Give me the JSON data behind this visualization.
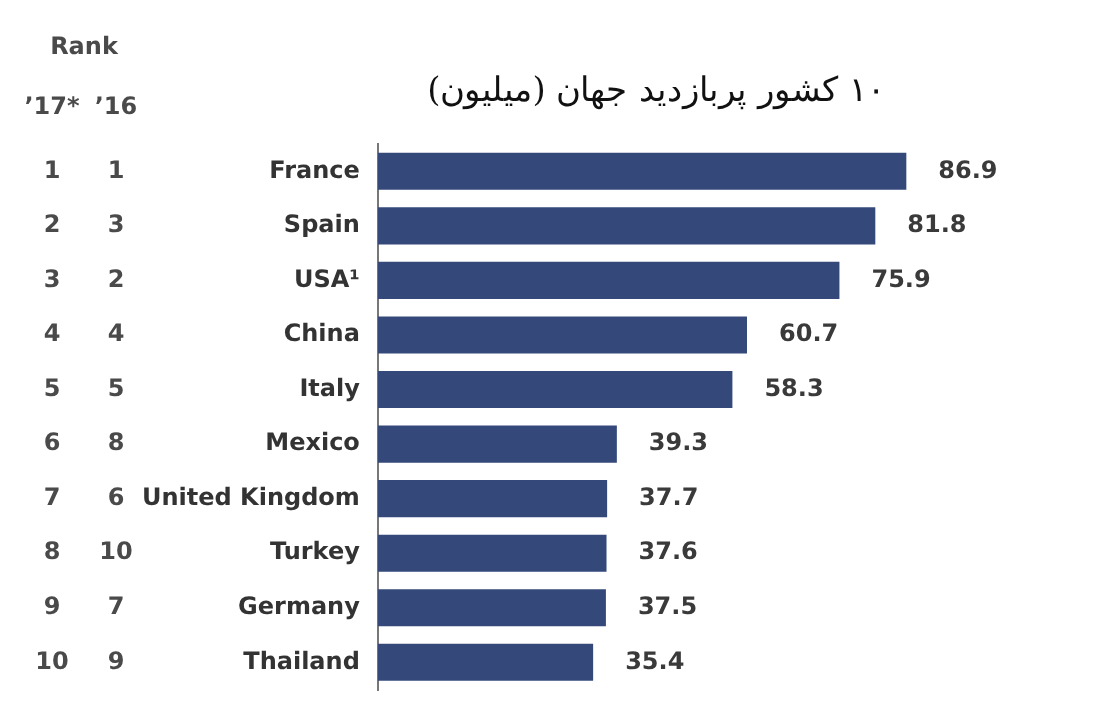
{
  "chart_data": {
    "type": "bar",
    "orientation": "horizontal",
    "title": "۱۰ کشور پربازدید جهان (میلیون)",
    "categories": [
      "France",
      "Spain",
      "USA¹",
      "China",
      "Italy",
      "Mexico",
      "United Kingdom",
      "Turkey",
      "Germany",
      "Thailand"
    ],
    "values": [
      86.9,
      81.8,
      75.9,
      60.7,
      58.3,
      39.3,
      37.7,
      37.6,
      37.5,
      35.4
    ],
    "color": "#34487a",
    "data_labels": true,
    "tick_labels": "y",
    "legend": false,
    "annotations": [
      "Rank",
      "’17*",
      "’16",
      "1",
      "1",
      "2",
      "3",
      "3",
      "2",
      "4",
      "4",
      "5",
      "5",
      "6",
      "8",
      "7",
      "6",
      "8",
      "10",
      "9",
      "7",
      "10",
      "9"
    ]
  }
}
